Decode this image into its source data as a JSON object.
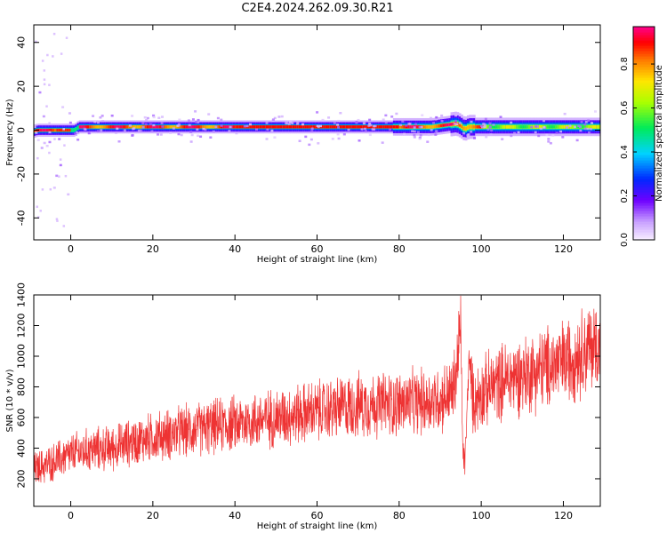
{
  "figure_title": "C2E4.2024.262.09.30.R21",
  "chart_data": [
    {
      "type": "heatmap",
      "title": "",
      "xlabel": "Height of straight line (km)",
      "ylabel": "Frequency (Hz)",
      "xlim": [
        -9,
        129
      ],
      "ylim": [
        -50,
        48
      ],
      "x_ticks": [
        0,
        20,
        40,
        60,
        80,
        100,
        120
      ],
      "y_ticks": [
        -40,
        -20,
        0,
        20,
        40
      ],
      "colorbar": {
        "label": "Normalized spectral amplitude",
        "range": [
          0,
          0.97
        ],
        "ticks": [
          0.0,
          0.2,
          0.4,
          0.6,
          0.8
        ]
      },
      "peak_frequency_track": {
        "x": [
          -9,
          -8,
          -4,
          0,
          1,
          2,
          10,
          20,
          40,
          60,
          80,
          88,
          92,
          94,
          95,
          96,
          97,
          98,
          100,
          110,
          120,
          129
        ],
        "y": [
          -0.5,
          0,
          0,
          0,
          0,
          1.5,
          1.5,
          1.5,
          1.5,
          1.5,
          1.5,
          1.5,
          2.5,
          3,
          2,
          0.5,
          1.5,
          1.5,
          1.5,
          1.5,
          1.5,
          1.5
        ]
      },
      "grid": false
    },
    {
      "type": "line",
      "title": "",
      "xlabel": "Height of straight line (km)",
      "ylabel": "SNR (10 * v/v)",
      "xlim": [
        -9,
        129
      ],
      "ylim": [
        20,
        1400
      ],
      "x_ticks": [
        0,
        20,
        40,
        60,
        80,
        100,
        120
      ],
      "y_ticks": [
        200,
        400,
        600,
        800,
        1000,
        1200,
        1400
      ],
      "series": [
        {
          "color": "#ee3333",
          "x": [
            -9,
            -5,
            0,
            5,
            10,
            15,
            20,
            30,
            40,
            50,
            60,
            70,
            80,
            85,
            90,
            93,
            94,
            95,
            95.5,
            96,
            96.5,
            97,
            98,
            100,
            105,
            110,
            115,
            120,
            125,
            129
          ],
          "y": [
            260,
            300,
            360,
            390,
            400,
            440,
            470,
            520,
            560,
            600,
            640,
            680,
            690,
            700,
            720,
            760,
            900,
            1200,
            380,
            300,
            600,
            1000,
            700,
            760,
            840,
            880,
            920,
            960,
            1040,
            1080
          ]
        }
      ],
      "grid": false
    }
  ]
}
